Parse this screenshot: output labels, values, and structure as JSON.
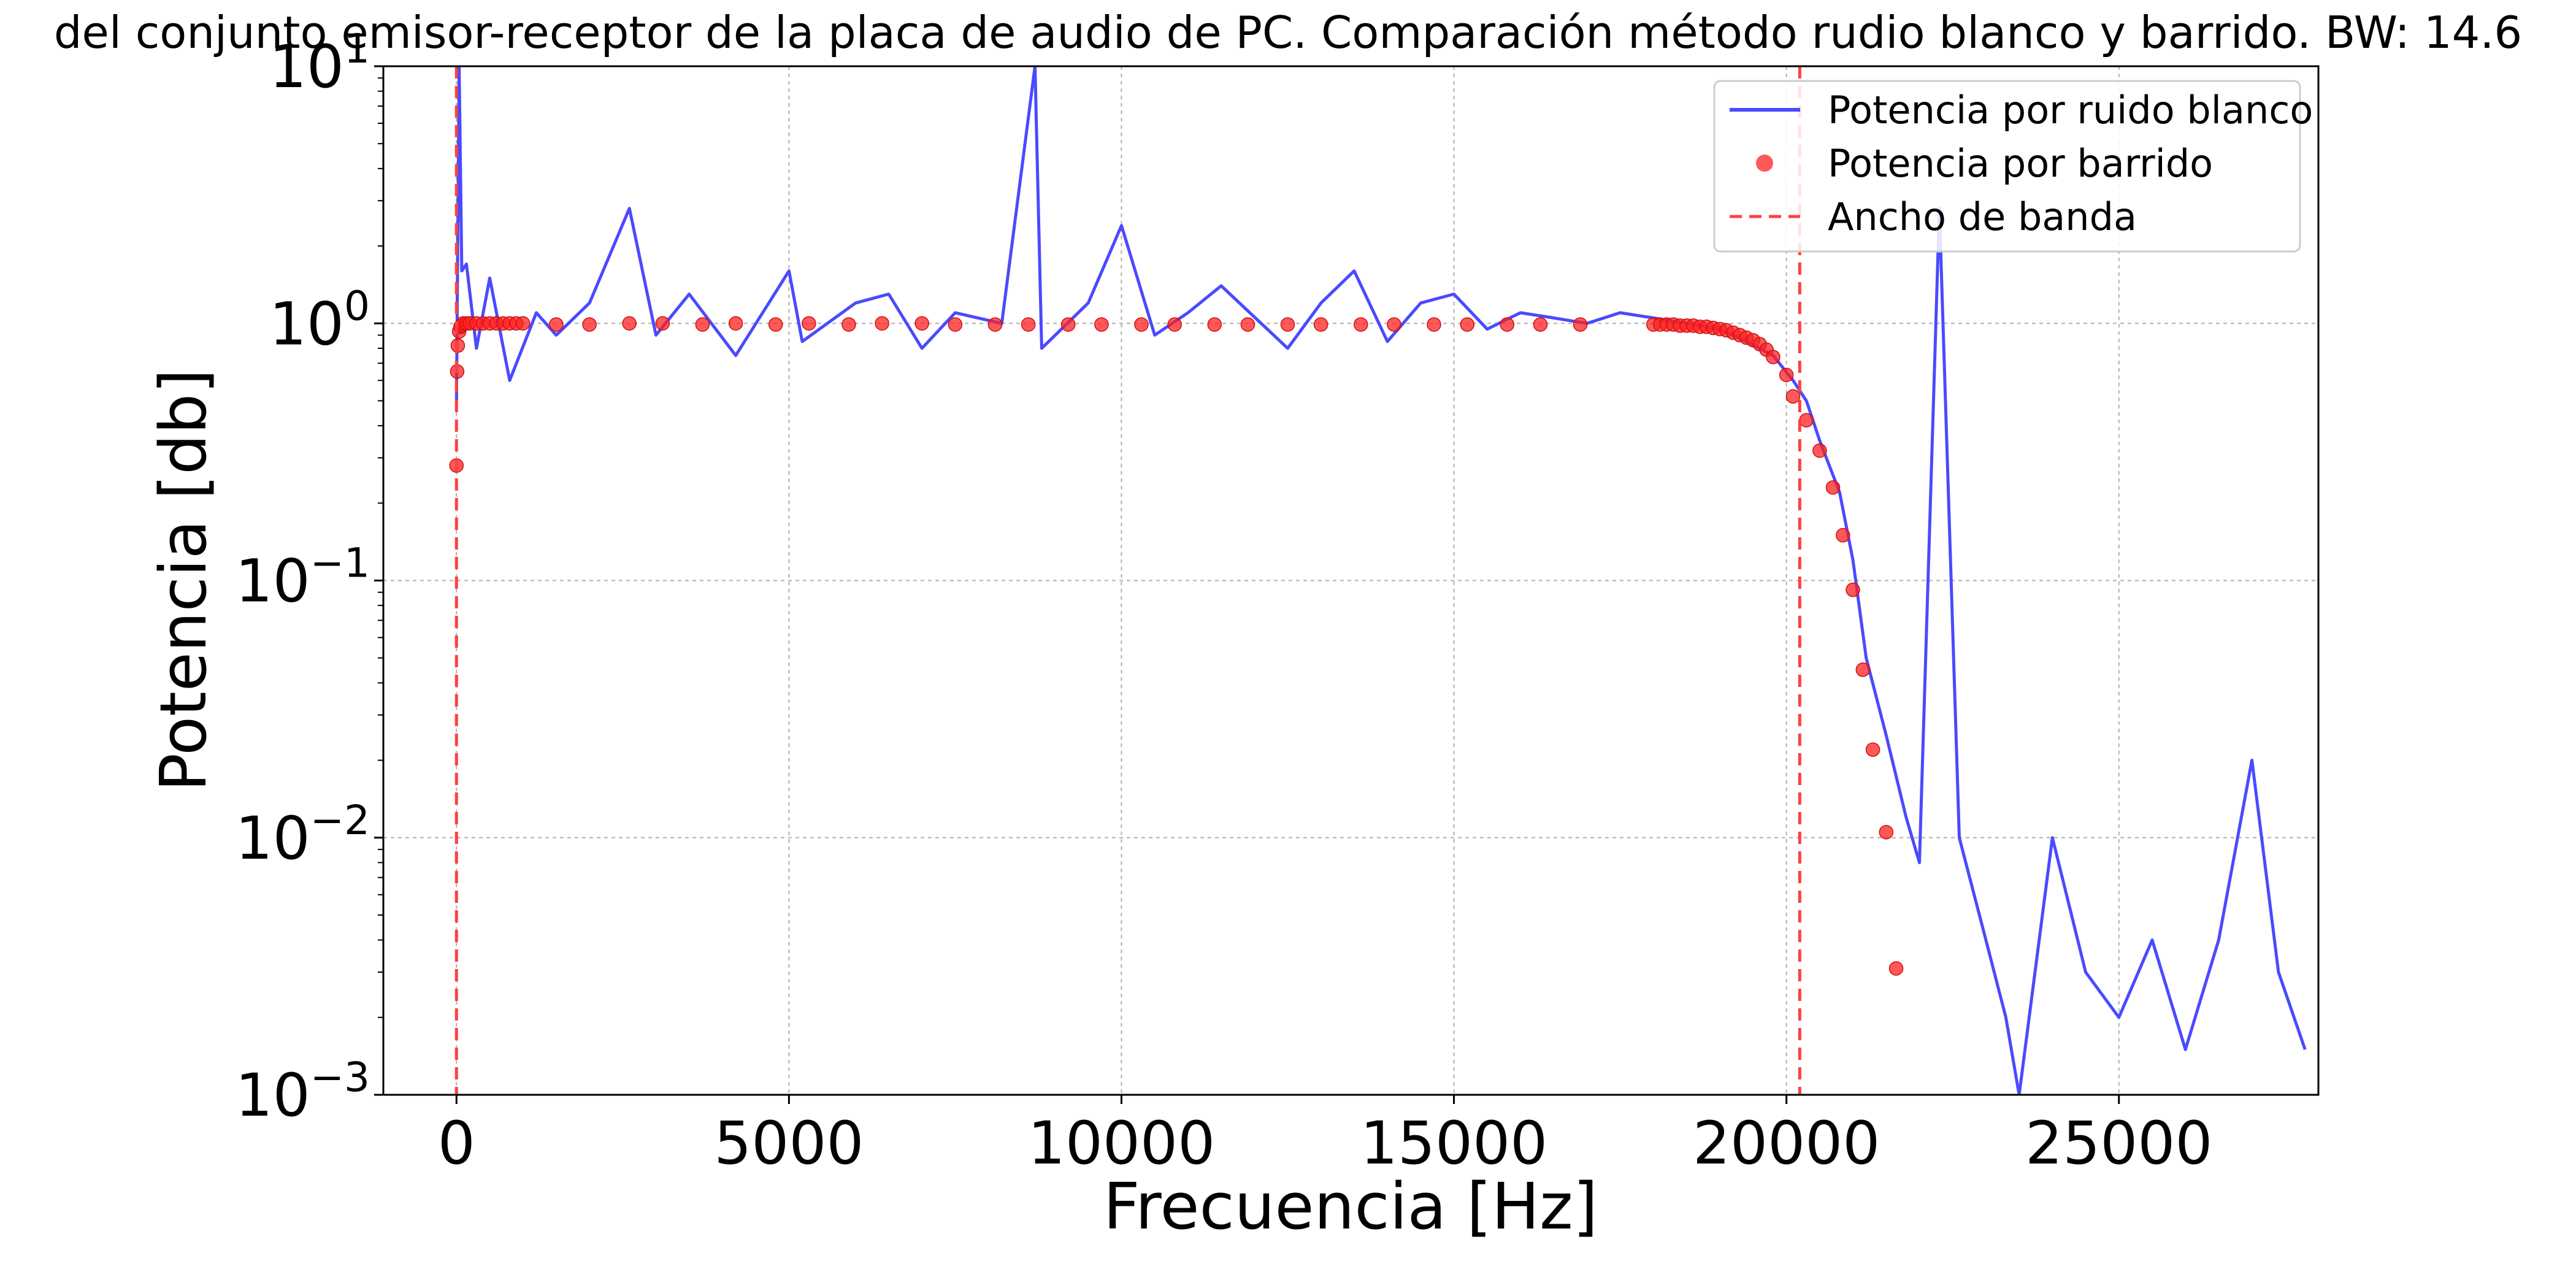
{
  "chart_data": {
    "type": "line",
    "title": "del conjunto emisor-receptor de la placa de audio de PC. Comparación método rudio blanco y barrido. BW: 14.6",
    "xlabel": "Frecuencia [Hz]",
    "ylabel": "Potencia [db]",
    "xlim": [
      -1100,
      28000
    ],
    "ylim": [
      0.001,
      10
    ],
    "yscale": "log",
    "grid": true,
    "legend_position": "top-right",
    "x_ticks": [
      {
        "value": 0,
        "label": "0"
      },
      {
        "value": 5000,
        "label": "5000"
      },
      {
        "value": 10000,
        "label": "10000"
      },
      {
        "value": 15000,
        "label": "15000"
      },
      {
        "value": 20000,
        "label": "20000"
      },
      {
        "value": 25000,
        "label": "25000"
      }
    ],
    "y_ticks": [
      {
        "value": 10,
        "base": "10",
        "exp": "1"
      },
      {
        "value": 1,
        "base": "10",
        "exp": "0"
      },
      {
        "value": 0.1,
        "base": "10",
        "exp": "−1"
      },
      {
        "value": 0.01,
        "base": "10",
        "exp": "−2"
      },
      {
        "value": 0.001,
        "base": "10",
        "exp": "−3"
      }
    ],
    "series": [
      {
        "name": "Potencia por ruido blanco",
        "kind": "line",
        "color": "#4a4aff",
        "x": [
          0,
          40,
          80,
          150,
          300,
          500,
          800,
          1200,
          1500,
          2000,
          2600,
          3000,
          3500,
          4200,
          5000,
          5200,
          6000,
          6500,
          7000,
          7500,
          8200,
          8700,
          8800,
          9500,
          10000,
          10500,
          11000,
          11500,
          12500,
          13000,
          13500,
          14000,
          14500,
          15000,
          15500,
          16000,
          16500,
          17000,
          17500,
          18000,
          18500,
          19000,
          19400,
          19800,
          20100,
          20300,
          20500,
          20800,
          21000,
          21200,
          21500,
          21800,
          22000,
          22300,
          22600,
          23000,
          23300,
          23500,
          24000,
          24500,
          25000,
          25500,
          26000,
          26500,
          27000,
          27400,
          27800
        ],
        "y": [
          0.5,
          10,
          1.6,
          1.7,
          0.8,
          1.5,
          0.6,
          1.1,
          0.9,
          1.2,
          2.8,
          0.9,
          1.3,
          0.75,
          1.6,
          0.85,
          1.2,
          1.3,
          0.8,
          1.1,
          1.0,
          10,
          0.8,
          1.2,
          2.4,
          0.9,
          1.1,
          1.4,
          0.8,
          1.2,
          1.6,
          0.85,
          1.2,
          1.3,
          0.95,
          1.1,
          1.05,
          1.0,
          1.1,
          1.05,
          1.0,
          0.95,
          0.85,
          0.75,
          0.6,
          0.5,
          0.35,
          0.22,
          0.12,
          0.05,
          0.025,
          0.012,
          0.008,
          2.8,
          0.01,
          0.004,
          0.002,
          0.001,
          0.01,
          0.003,
          0.002,
          0.004,
          0.0015,
          0.004,
          0.02,
          0.003,
          0.0015
        ]
      },
      {
        "name": "Potencia por barrido",
        "kind": "points",
        "color": "#ff2020",
        "x": [
          0,
          10,
          20,
          40,
          60,
          80,
          100,
          150,
          200,
          300,
          400,
          500,
          600,
          700,
          800,
          900,
          1000,
          1500,
          2000,
          2600,
          3100,
          3700,
          4200,
          4800,
          5300,
          5900,
          6400,
          7000,
          7500,
          8100,
          8600,
          9200,
          9700,
          10300,
          10800,
          11400,
          11900,
          12500,
          13000,
          13600,
          14100,
          14700,
          15200,
          15800,
          16300,
          16900,
          18000,
          18100,
          18200,
          18300,
          18400,
          18500,
          18600,
          18700,
          18800,
          18900,
          19000,
          19100,
          19200,
          19300,
          19400,
          19500,
          19600,
          19700,
          19800,
          20000,
          20100,
          20300,
          20500,
          20700,
          20850,
          21000,
          21150,
          21300,
          21500,
          21650
        ],
        "y": [
          0.28,
          0.65,
          0.82,
          0.93,
          0.97,
          0.98,
          1.0,
          1.0,
          1.0,
          1.0,
          1.0,
          1.0,
          1.0,
          1.0,
          1.0,
          1.0,
          1.0,
          0.99,
          0.99,
          1.0,
          1.0,
          0.99,
          1.0,
          0.99,
          1.0,
          0.99,
          1.0,
          1.0,
          0.99,
          0.99,
          0.99,
          0.99,
          0.99,
          0.99,
          0.99,
          0.99,
          0.99,
          0.99,
          0.99,
          0.99,
          0.99,
          0.99,
          0.99,
          0.99,
          0.99,
          0.99,
          0.99,
          0.99,
          0.99,
          0.99,
          0.98,
          0.98,
          0.98,
          0.97,
          0.97,
          0.96,
          0.95,
          0.94,
          0.92,
          0.9,
          0.88,
          0.86,
          0.83,
          0.79,
          0.74,
          0.63,
          0.52,
          0.42,
          0.32,
          0.23,
          0.15,
          0.092,
          0.045,
          0.022,
          0.0105,
          0.0031
        ]
      },
      {
        "name": "Ancho de banda",
        "kind": "vlines",
        "color": "#ff4040",
        "x": [
          0,
          20200
        ]
      }
    ]
  }
}
